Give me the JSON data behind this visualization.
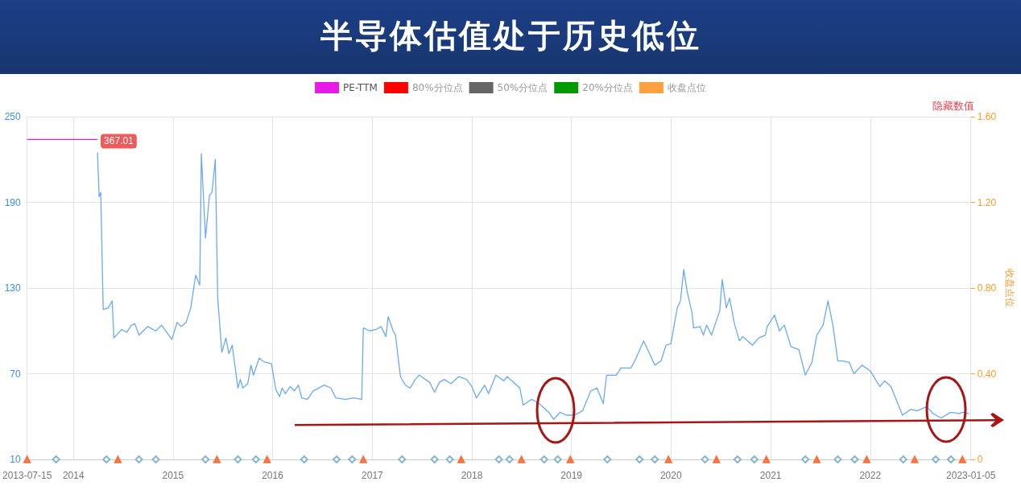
{
  "chart_data": {
    "type": "line",
    "title": "半导体估值处于历史低位",
    "y2label": "收盘点位",
    "xlim": [
      "2013-07-15",
      "2023-01-05"
    ],
    "xticks": [
      {
        "value": "2013-07-15",
        "label": "2013-07-15"
      },
      {
        "value": "2014-01-01",
        "label": "2014"
      },
      {
        "value": "2015-01-01",
        "label": "2015"
      },
      {
        "value": "2016-01-01",
        "label": "2016"
      },
      {
        "value": "2017-01-01",
        "label": "2017"
      },
      {
        "value": "2018-01-01",
        "label": "2018"
      },
      {
        "value": "2019-01-01",
        "label": "2019"
      },
      {
        "value": "2020-01-01",
        "label": "2020"
      },
      {
        "value": "2021-01-01",
        "label": "2021"
      },
      {
        "value": "2022-01-01",
        "label": "2022"
      },
      {
        "value": "2023-01-05",
        "label": "2023-01-05"
      }
    ],
    "ylim": [
      10,
      250
    ],
    "yticks": [
      10,
      70,
      130,
      190,
      250
    ],
    "y2lim": [
      0,
      1.6
    ],
    "y2ticks": [
      0,
      {
        "value": 0.4,
        "label": "0.40"
      },
      {
        "value": 0.8,
        "label": "0.80"
      },
      {
        "value": 1.2,
        "label": "1.20"
      },
      {
        "value": 1.6,
        "label": "1.60"
      }
    ],
    "grid": true,
    "legend": "top",
    "marker": "none",
    "series": [
      {
        "name": "PE-TTM",
        "color": "#e619e6",
        "x": [
          "2013-07-15",
          "2014-03-30"
        ],
        "values": [
          234,
          234
        ]
      },
      {
        "color": "#6aaaf5",
        "x": [
          "2014-03-30",
          "2014-04-05",
          "2014-04-11",
          "2014-04-20",
          "2014-05-08",
          "2014-05-23",
          "2014-05-29",
          "2014-06-27",
          "2014-07-15",
          "2014-08-02",
          "2014-08-14",
          "2014-08-29",
          "2014-09-30",
          "2014-10-30",
          "2014-11-20",
          "2014-12-28",
          "2015-01-16",
          "2015-01-31",
          "2015-02-18",
          "2015-03-07",
          "2015-03-25",
          "2015-04-09",
          "2015-04-15",
          "2015-04-30",
          "2015-05-15",
          "2015-05-24",
          "2015-06-05",
          "2015-06-14",
          "2015-06-29",
          "2015-07-14",
          "2015-07-25",
          "2015-08-06",
          "2015-08-27",
          "2015-09-05",
          "2015-09-14",
          "2015-10-02",
          "2015-10-14",
          "2015-10-23",
          "2015-11-13",
          "2015-11-25",
          "2015-12-07",
          "2015-12-28",
          "2016-01-13",
          "2016-01-27",
          "2016-02-05",
          "2016-02-17",
          "2016-03-06",
          "2016-03-21",
          "2016-04-05",
          "2016-04-17",
          "2016-05-08",
          "2016-05-29",
          "2016-07-09",
          "2016-08-02",
          "2016-08-20",
          "2016-09-25",
          "2016-10-24",
          "2016-11-23",
          "2016-11-29",
          "2016-12-23",
          "2017-01-15",
          "2017-02-02",
          "2017-02-20",
          "2017-02-28",
          "2017-03-18",
          "2017-03-27",
          "2017-04-14",
          "2017-05-02",
          "2017-05-20",
          "2017-06-07",
          "2017-06-22",
          "2017-07-30",
          "2017-08-17",
          "2017-09-04",
          "2017-09-22",
          "2017-10-16",
          "2017-11-14",
          "2017-12-13",
          "2018-01-01",
          "2018-01-18",
          "2018-02-17",
          "2018-03-03",
          "2018-03-30",
          "2018-04-28",
          "2018-05-10",
          "2018-06-26",
          "2018-07-08",
          "2018-08-07",
          "2018-08-30",
          "2018-10-10",
          "2018-10-28",
          "2018-11-20",
          "2018-12-14",
          "2019-01-12",
          "2019-02-11",
          "2019-03-13",
          "2019-04-05",
          "2019-04-28",
          "2019-05-10",
          "2019-06-14",
          "2019-07-02",
          "2019-08-07",
          "2019-08-24",
          "2019-09-23",
          "2019-11-03",
          "2019-11-26",
          "2019-12-14",
          "2020-01-01",
          "2020-01-24",
          "2020-02-05",
          "2020-02-17",
          "2020-02-29",
          "2020-03-18",
          "2020-03-24",
          "2020-04-17",
          "2020-04-29",
          "2020-05-11",
          "2020-05-29",
          "2020-06-10",
          "2020-06-28",
          "2020-07-07",
          "2020-07-22",
          "2020-08-03",
          "2020-08-21",
          "2020-09-08",
          "2020-09-20",
          "2020-10-08",
          "2020-10-26",
          "2020-11-18",
          "2020-12-12",
          "2020-12-19",
          "2021-01-15",
          "2021-02-02",
          "2021-02-20",
          "2021-03-16",
          "2021-04-14",
          "2021-05-08",
          "2021-06-01",
          "2021-06-19",
          "2021-07-12",
          "2021-07-30",
          "2021-08-17",
          "2021-09-04",
          "2021-09-22",
          "2021-10-16",
          "2021-11-02",
          "2021-12-02",
          "2022-01-01",
          "2022-02-05",
          "2022-02-23",
          "2022-03-18",
          "2022-04-29",
          "2022-05-29",
          "2022-06-22",
          "2022-07-27",
          "2022-08-20",
          "2022-09-18",
          "2022-10-24",
          "2022-11-23",
          "2022-12-05",
          "2022-12-29"
        ],
        "values": [
          225,
          194,
          197,
          115,
          116,
          121,
          95,
          101,
          99,
          104,
          105,
          97,
          103,
          100,
          104,
          94,
          106,
          103,
          106,
          116,
          139,
          132,
          224,
          165,
          195,
          197,
          220,
          123,
          85,
          95,
          84,
          90,
          60,
          66,
          60,
          63,
          76,
          69,
          81,
          79,
          78,
          77,
          59,
          54,
          60,
          56,
          61,
          58,
          62,
          53,
          52,
          58,
          62,
          60,
          53,
          52,
          53,
          52,
          102,
          100,
          101,
          103,
          96,
          110,
          100,
          97,
          68,
          62,
          60,
          66,
          69,
          64,
          57,
          64,
          66,
          63,
          68,
          66,
          61,
          53,
          62,
          56,
          69,
          65,
          68,
          60,
          48,
          52,
          50,
          43,
          38,
          43,
          41,
          41,
          44,
          58,
          60,
          49,
          69,
          69,
          74,
          74,
          80,
          93,
          76,
          79,
          90,
          91,
          116,
          121,
          143,
          128,
          113,
          102,
          103,
          97,
          104,
          97,
          104,
          114,
          136,
          116,
          123,
          105,
          93,
          96,
          93,
          90,
          95,
          97,
          103,
          111,
          100,
          104,
          89,
          87,
          69,
          78,
          97,
          104,
          121,
          104,
          79,
          79,
          78,
          70,
          76,
          72,
          61,
          65,
          61,
          41,
          45,
          44,
          47,
          42,
          39,
          43,
          42,
          43,
          42
        ]
      },
      {
        "name": "80%分位点",
        "color": "#ff0000"
      },
      {
        "name": "50%分位点",
        "color": "#666666"
      },
      {
        "name": "20%分位点",
        "color": "#009900"
      },
      {
        "name": "收盘点位",
        "color": "#ffa040"
      },
      {
        "type": "scatter",
        "marker": "triangle",
        "color": "#ff5a1f",
        "x": [
          "2013-07-15",
          "2014-06-13",
          "2015-06-11",
          "2015-12-12",
          "2016-11-29",
          "2017-11-23",
          "2018-07-02",
          "2018-12-28",
          "2019-12-23",
          "2020-06-16",
          "2020-12-16",
          "2021-06-19",
          "2021-12-19",
          "2022-06-13",
          "2022-12-05"
        ],
        "values": [
          10,
          10,
          10,
          10,
          10,
          10,
          10,
          10,
          10,
          10,
          10,
          10,
          10,
          10,
          10
        ]
      },
      {
        "type": "scatter",
        "marker": "diamond",
        "color": "#6aa5c0",
        "x": [
          "2013-10-29",
          "2014-05-02",
          "2014-08-29",
          "2014-10-30",
          "2015-04-30",
          "2015-08-27",
          "2015-11-01",
          "2016-04-26",
          "2016-08-23",
          "2016-10-19",
          "2017-04-20",
          "2017-08-17",
          "2017-10-12",
          "2018-04-10",
          "2018-05-19",
          "2018-09-23",
          "2018-11-12",
          "2019-05-13",
          "2019-09-08",
          "2019-11-03",
          "2020-05-05",
          "2020-09-01",
          "2020-11-02",
          "2021-05-08",
          "2021-09-04",
          "2021-11-05",
          "2022-05-02",
          "2022-08-29",
          "2022-10-24"
        ],
        "values": [
          10,
          10,
          10,
          10,
          10,
          10,
          10,
          10,
          10,
          10,
          10,
          10,
          10,
          10,
          10,
          10,
          10,
          10,
          10,
          10,
          10,
          10,
          10,
          10,
          10,
          10,
          10,
          10,
          10
        ]
      }
    ],
    "annotations": [
      {
        "text": "367.01",
        "x": "2014-03-30",
        "y": 234
      },
      "隐藏数值"
    ]
  }
}
